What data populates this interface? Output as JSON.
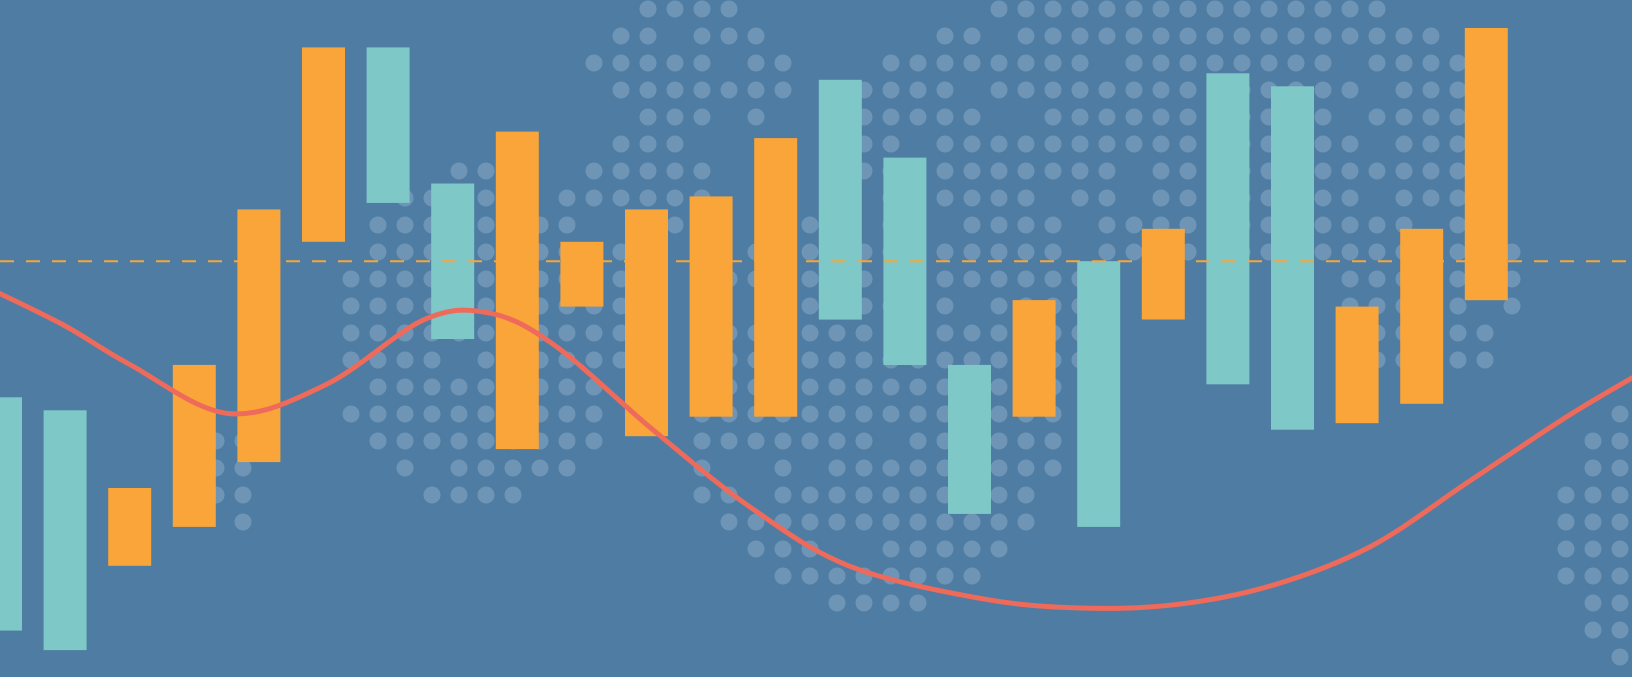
{
  "colors": {
    "background": "#4e7ca3",
    "dots": "#8aa9c6",
    "up_bar": "#f9a53a",
    "down_bar": "#7ec9c7",
    "baseline": "#f9a53a",
    "curve": "#ee6a5a"
  },
  "chart_data": {
    "type": "bar",
    "subtype": "floating-bars-with-curve-overlay",
    "title": "",
    "xlabel": "",
    "ylabel": "",
    "ylim": [
      0,
      100
    ],
    "reference_line": {
      "y": 62,
      "style": "dashed"
    },
    "bars": [
      {
        "low": 5,
        "high": 41,
        "kind": "down"
      },
      {
        "low": 2,
        "high": 39,
        "kind": "down"
      },
      {
        "low": 15,
        "high": 27,
        "kind": "up"
      },
      {
        "low": 21,
        "high": 46,
        "kind": "up"
      },
      {
        "low": 31,
        "high": 70,
        "kind": "up"
      },
      {
        "low": 65,
        "high": 95,
        "kind": "up"
      },
      {
        "low": 71,
        "high": 95,
        "kind": "down"
      },
      {
        "low": 50,
        "high": 74,
        "kind": "down"
      },
      {
        "low": 33,
        "high": 82,
        "kind": "up"
      },
      {
        "low": 55,
        "high": 65,
        "kind": "up"
      },
      {
        "low": 35,
        "high": 70,
        "kind": "up"
      },
      {
        "low": 38,
        "high": 72,
        "kind": "up"
      },
      {
        "low": 38,
        "high": 81,
        "kind": "up"
      },
      {
        "low": 53,
        "high": 90,
        "kind": "down"
      },
      {
        "low": 46,
        "high": 78,
        "kind": "down"
      },
      {
        "low": 23,
        "high": 46,
        "kind": "down"
      },
      {
        "low": 38,
        "high": 56,
        "kind": "up"
      },
      {
        "low": 21,
        "high": 62,
        "kind": "down"
      },
      {
        "low": 53,
        "high": 67,
        "kind": "up"
      },
      {
        "low": 43,
        "high": 91,
        "kind": "down"
      },
      {
        "low": 36,
        "high": 89,
        "kind": "down"
      },
      {
        "low": 37,
        "high": 55,
        "kind": "up"
      },
      {
        "low": 40,
        "high": 67,
        "kind": "up"
      },
      {
        "low": 56,
        "high": 98,
        "kind": "up"
      }
    ],
    "curve": [
      [
        0,
        57
      ],
      [
        1,
        52
      ],
      [
        2,
        46
      ],
      [
        3.5,
        38.5
      ],
      [
        5,
        43
      ],
      [
        6.5,
        53
      ],
      [
        7.5,
        54
      ],
      [
        8.5,
        49
      ],
      [
        10,
        36
      ],
      [
        11.5,
        24
      ],
      [
        13,
        15
      ],
      [
        15,
        10
      ],
      [
        16.5,
        8.5
      ],
      [
        18,
        9
      ],
      [
        19.5,
        12
      ],
      [
        21,
        18
      ],
      [
        22.5,
        28
      ],
      [
        24,
        38
      ],
      [
        25,
        44
      ]
    ],
    "x_range": [
      0,
      25
    ]
  }
}
